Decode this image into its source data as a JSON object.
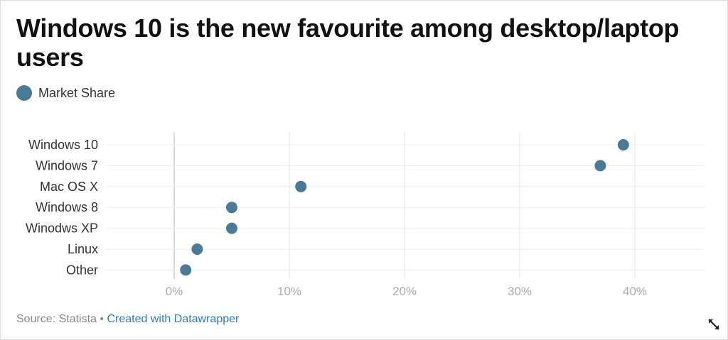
{
  "title": "Windows 10 is the new favourite among desktop/laptop users",
  "legend": {
    "label": "Market Share",
    "color": "#4a7a96"
  },
  "footer": {
    "source": "Source: Statista",
    "separator": "•",
    "link": "Created with Datawrapper"
  },
  "icons": {
    "expand": "expand-arrows-icon"
  },
  "chart_data": {
    "type": "scatter",
    "title": "Windows 10 is the new favourite among desktop/laptop users",
    "categories": [
      "Windows 10",
      "Windows 7",
      "Mac OS X",
      "Windows 8",
      "Winodws XP",
      "Linux",
      "Other"
    ],
    "series": [
      {
        "name": "Market Share",
        "values": [
          39,
          37,
          11,
          5,
          5,
          2,
          1
        ],
        "color": "#4a7a96"
      }
    ],
    "xlim": [
      -5,
      46
    ],
    "x_ticks": [
      0,
      10,
      20,
      30,
      40
    ],
    "x_tick_labels": [
      "0%",
      "10%",
      "20%",
      "30%",
      "40%"
    ],
    "xlabel": "",
    "ylabel": "",
    "grid": true,
    "legend_position": "top-left"
  }
}
